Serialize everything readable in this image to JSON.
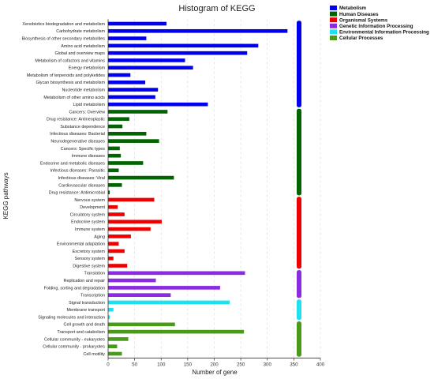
{
  "chart_data": {
    "type": "bar",
    "orientation": "horizontal",
    "title": "Histogram of KEGG",
    "xlabel": "Number of gene",
    "ylabel": "KEGG pathways",
    "xlim": [
      0,
      400
    ],
    "xticks": [
      0,
      50,
      100,
      150,
      200,
      250,
      300,
      350,
      400
    ],
    "grid": "vertical dashed",
    "legend_position": "top-right",
    "groups": [
      {
        "name": "Metabolism",
        "color": "#0000ee",
        "items": [
          {
            "label": "Xenobiotics biodegradation and metabolism",
            "value": 110
          },
          {
            "label": "Carbohydrate metabolism",
            "value": 338
          },
          {
            "label": "Biosynthesis of other secondary metabolites",
            "value": 72
          },
          {
            "label": "Amino acid metabolism",
            "value": 283
          },
          {
            "label": "Global and overview maps",
            "value": 262
          },
          {
            "label": "Metabolism of cofactors and vitamins",
            "value": 145
          },
          {
            "label": "Energy metabolism",
            "value": 160
          },
          {
            "label": "Metabolism of terpenoids and polyketides",
            "value": 42
          },
          {
            "label": "Glycan biosynthesis and metabolism",
            "value": 70
          },
          {
            "label": "Nucleotide metabolism",
            "value": 94
          },
          {
            "label": "Metabolism of other amino acids",
            "value": 89
          },
          {
            "label": "Lipid metabolism",
            "value": 188
          }
        ]
      },
      {
        "name": "Human Diseases",
        "color": "#006400",
        "items": [
          {
            "label": "Cancers: Overview",
            "value": 112
          },
          {
            "label": "Drug resistance: Antineoplastic",
            "value": 40
          },
          {
            "label": "Substance dependence",
            "value": 27
          },
          {
            "label": "Infectious diseases: Bacterial",
            "value": 72
          },
          {
            "label": "Neurodegenerative diseases",
            "value": 96
          },
          {
            "label": "Cancers: Specific types",
            "value": 22
          },
          {
            "label": "Immune diseases",
            "value": 24
          },
          {
            "label": "Endocrine and metabolic diseases",
            "value": 66
          },
          {
            "label": "Infectious diseases: Parasitic",
            "value": 20
          },
          {
            "label": "Infectious diseases: Viral",
            "value": 124
          },
          {
            "label": "Cardiovascular diseases",
            "value": 26
          },
          {
            "label": "Drug resistance: Antimicrobial",
            "value": 3
          }
        ]
      },
      {
        "name": "Organismal Systems",
        "color": "#ee0000",
        "items": [
          {
            "label": "Nervous system",
            "value": 87
          },
          {
            "label": "Development",
            "value": 18
          },
          {
            "label": "Circulatory system",
            "value": 31
          },
          {
            "label": "Endocrine system",
            "value": 101
          },
          {
            "label": "Immune system",
            "value": 80
          },
          {
            "label": "Aging",
            "value": 43
          },
          {
            "label": "Environmental adaptation",
            "value": 20
          },
          {
            "label": "Excretory system",
            "value": 31
          },
          {
            "label": "Sensory system",
            "value": 10
          },
          {
            "label": "Digestive system",
            "value": 36
          }
        ]
      },
      {
        "name": "Genetic Information Processing",
        "color": "#8a2be2",
        "items": [
          {
            "label": "Translation",
            "value": 258
          },
          {
            "label": "Replication and repair",
            "value": 90
          },
          {
            "label": "Folding, sorting and degradation",
            "value": 211
          },
          {
            "label": "Transcription",
            "value": 118
          }
        ]
      },
      {
        "name": "Environmental Information Processing",
        "color": "#1ee0ee",
        "items": [
          {
            "label": "Signal transduction",
            "value": 229
          },
          {
            "label": "Membrane transport",
            "value": 10
          },
          {
            "label": "Signaling molecules and interaction",
            "value": 3
          }
        ]
      },
      {
        "name": "Cellular Processes",
        "color": "#4a9a1a",
        "items": [
          {
            "label": "Cell growth and death",
            "value": 126
          },
          {
            "label": "Transport and catabolism",
            "value": 256
          },
          {
            "label": "Cellular community - eukaryotes",
            "value": 38
          },
          {
            "label": "Cellular community - prokaryotes",
            "value": 17
          },
          {
            "label": "Cell motility",
            "value": 26
          }
        ]
      }
    ]
  }
}
